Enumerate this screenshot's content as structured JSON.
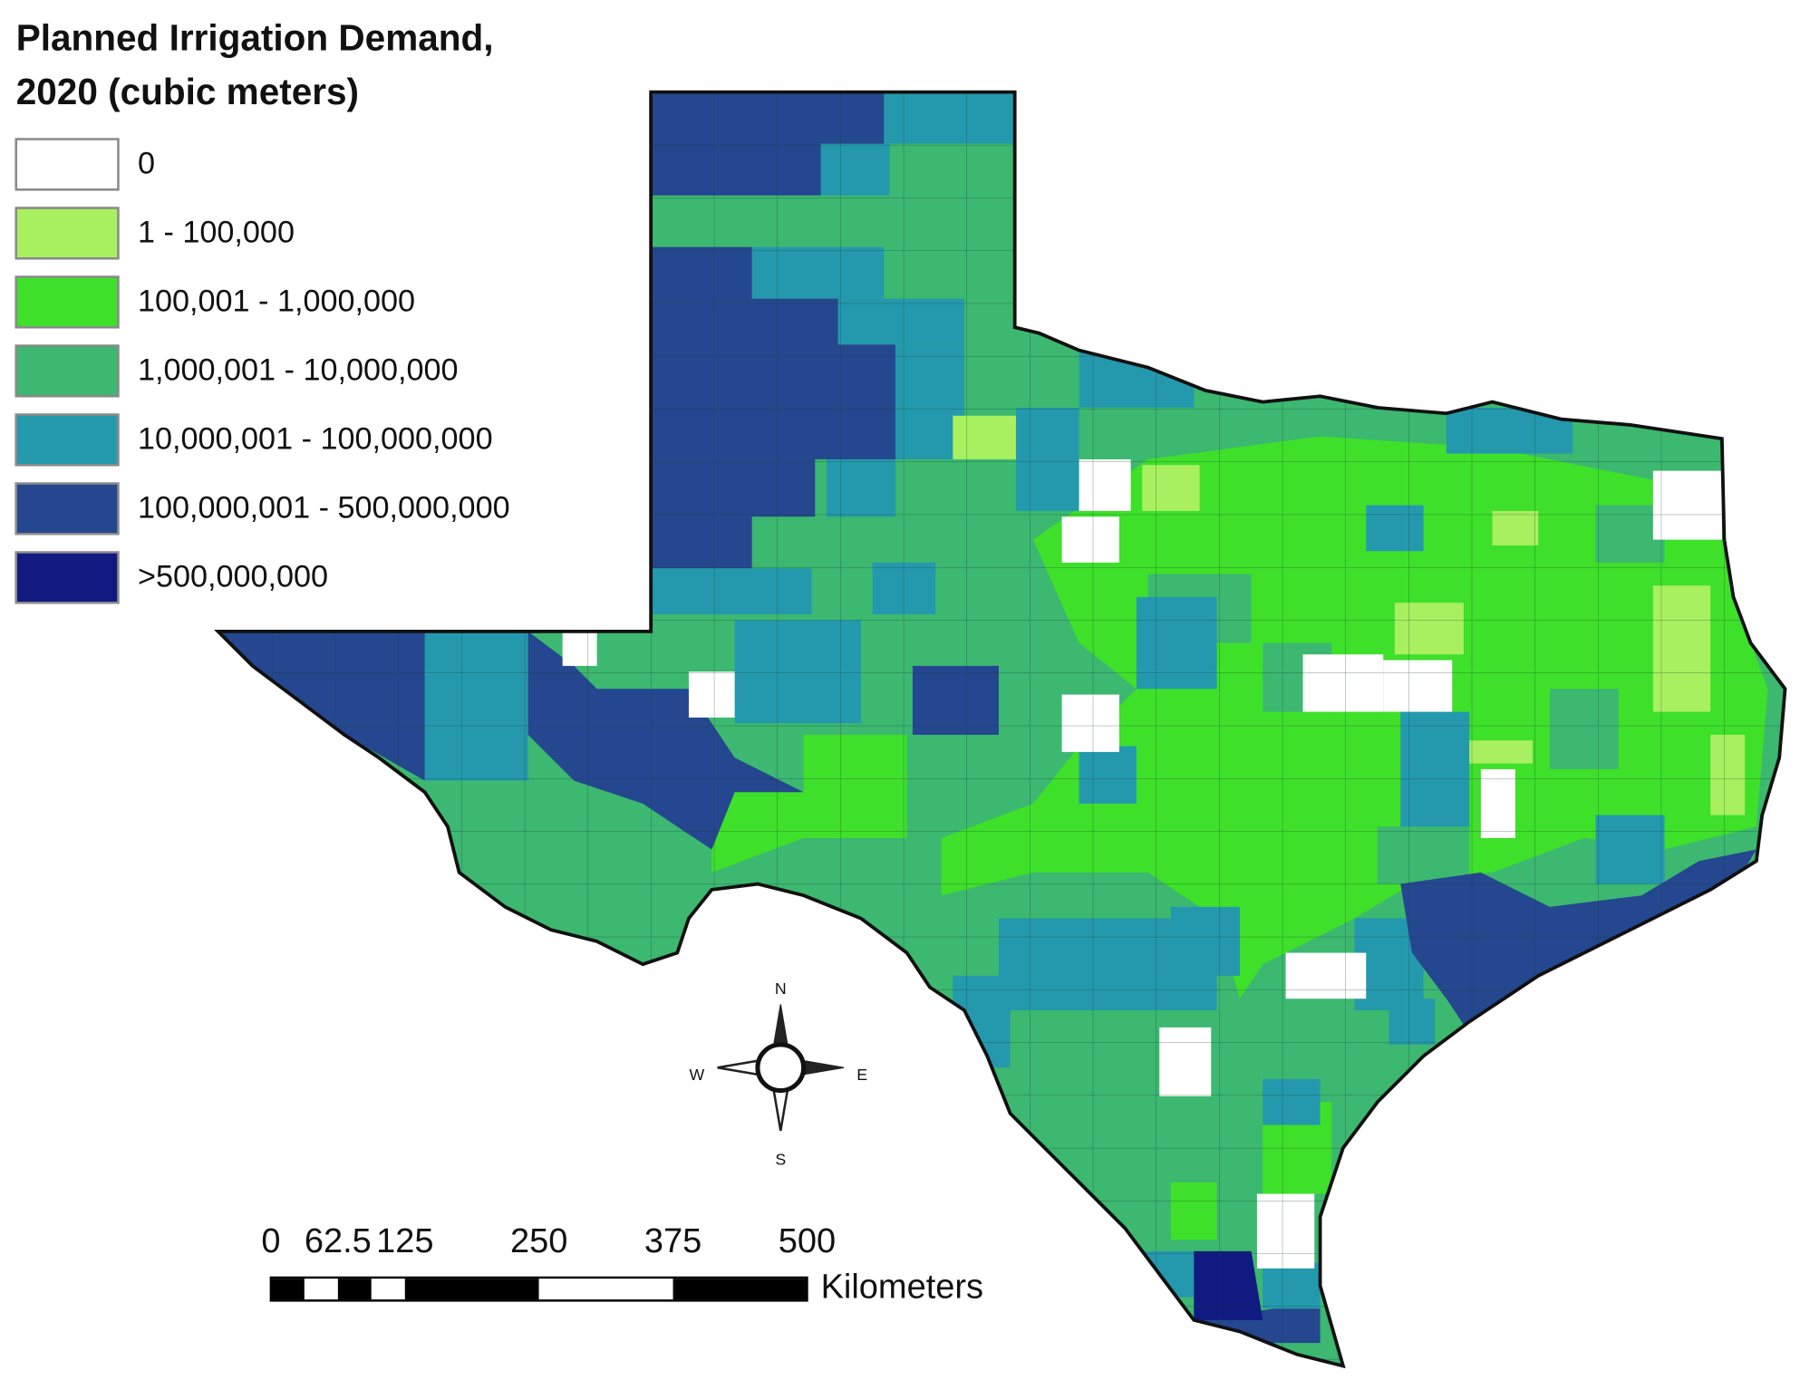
{
  "legend": {
    "title": [
      "Planned Irrigation Demand,",
      "2020 (cubic meters)"
    ],
    "items": [
      {
        "label": "0",
        "color": "#ffffff"
      },
      {
        "label": "1 - 100,000",
        "color": "#a8f060"
      },
      {
        "label": "100,001 - 1,000,000",
        "color": "#3ee02a"
      },
      {
        "label": "1,000,001 - 10,000,000",
        "color": "#3cb870"
      },
      {
        "label": "10,000,001 - 100,000,000",
        "color": "#2499ad"
      },
      {
        "label": "100,000,001 - 500,000,000",
        "color": "#24478f"
      },
      {
        "label": ">500,000,000",
        "color": "#111a80"
      }
    ]
  },
  "scale_bar": {
    "ticks": [
      0,
      62.5,
      125,
      250,
      375,
      500
    ],
    "unit": "Kilometers"
  },
  "compass": {
    "north": "N",
    "south": "S",
    "east": "E",
    "west": "W"
  }
}
